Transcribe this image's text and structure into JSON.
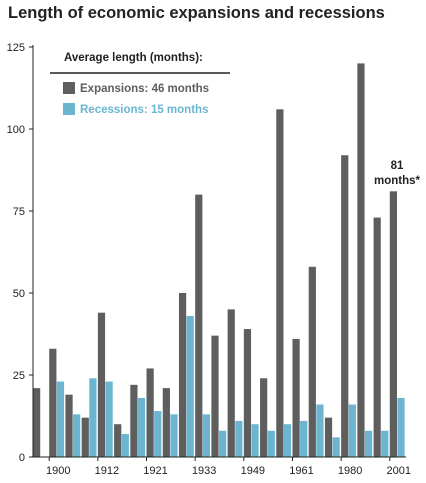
{
  "title": "Length of economic expansions and recessions",
  "chart_data": {
    "type": "bar",
    "title": "Length of economic expansions and recessions",
    "xlabel": "",
    "ylabel": "",
    "ylim": [
      0,
      125
    ],
    "yticks": [
      0,
      25,
      50,
      75,
      100,
      125
    ],
    "x_tick_labels": [
      "1900",
      "1912",
      "1921",
      "1933",
      "1949",
      "1961",
      "1980",
      "2001"
    ],
    "x_tick_positions": [
      1,
      4,
      7,
      10,
      13,
      16,
      19,
      22
    ],
    "grid": false,
    "legend": {
      "heading": "Average length (months):",
      "placement": "top-left",
      "entries": [
        "Expansions: 46 months",
        "Recessions: 15 months"
      ]
    },
    "series": [
      {
        "name": "Expansions",
        "color": "#5e5e5e",
        "values": [
          21,
          33,
          19,
          12,
          44,
          10,
          22,
          27,
          21,
          50,
          80,
          37,
          45,
          39,
          24,
          106,
          36,
          58,
          12,
          92,
          120,
          73,
          81
        ]
      },
      {
        "name": "Recessions",
        "color": "#6bb5d0",
        "values": [
          null,
          23,
          13,
          24,
          23,
          7,
          18,
          14,
          13,
          43,
          13,
          8,
          11,
          10,
          8,
          10,
          11,
          16,
          6,
          16,
          8,
          8,
          18
        ]
      }
    ],
    "annotation": {
      "lines": [
        "81",
        "months*"
      ]
    }
  }
}
